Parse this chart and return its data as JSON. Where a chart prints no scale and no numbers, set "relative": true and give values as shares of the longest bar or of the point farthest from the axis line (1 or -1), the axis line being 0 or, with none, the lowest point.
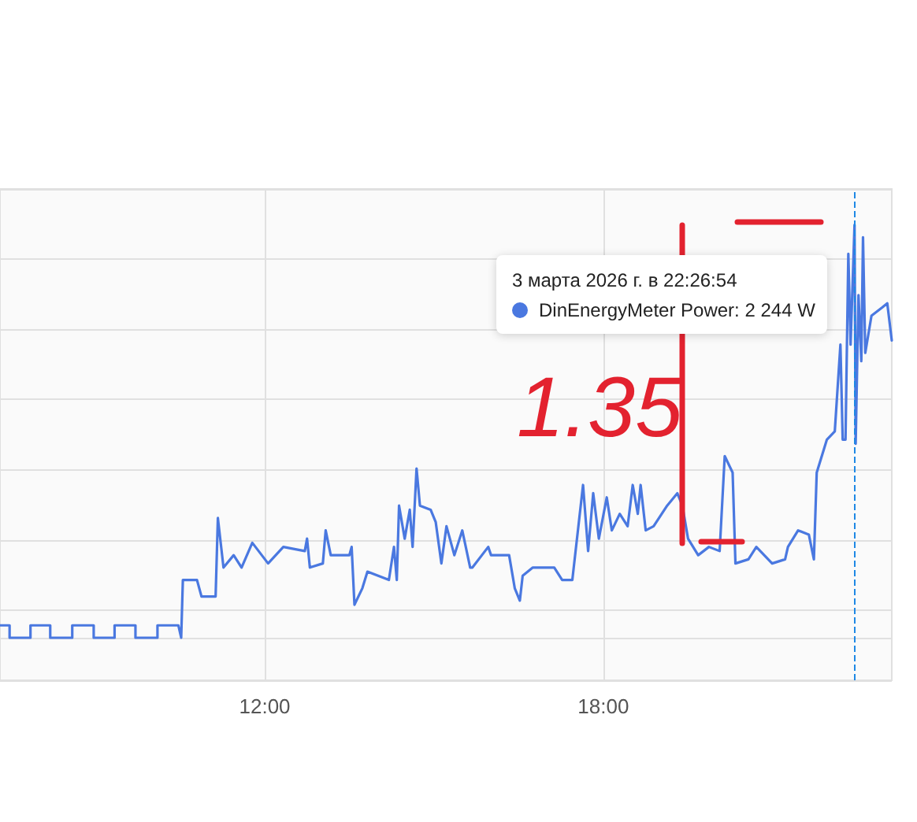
{
  "chart_data": {
    "type": "line",
    "relative": true,
    "color": "#4a78e0",
    "marker": "none",
    "grid": true,
    "tick_labels": "x",
    "xlim": [
      7.31,
      23.11
    ],
    "xticks": [
      {
        "value": 12,
        "label": "12:00"
      },
      {
        "value": 18,
        "label": "18:00"
      }
    ],
    "x": [
      7.31,
      7.48,
      7.48,
      7.85,
      7.85,
      8.2,
      8.2,
      8.59,
      8.59,
      8.97,
      8.97,
      9.34,
      9.34,
      9.71,
      9.71,
      10.1,
      10.1,
      10.47,
      10.52,
      10.55,
      10.8,
      10.88,
      11.13,
      11.17,
      11.27,
      11.45,
      11.59,
      11.78,
      12.06,
      12.33,
      12.71,
      12.75,
      12.8,
      13.03,
      13.08,
      13.17,
      13.5,
      13.54,
      13.59,
      13.73,
      13.82,
      14.2,
      14.29,
      14.34,
      14.38,
      14.48,
      14.57,
      14.62,
      14.69,
      14.75,
      14.94,
      15.03,
      15.13,
      15.22,
      15.36,
      15.5,
      15.64,
      15.68,
      15.96,
      16.01,
      16.33,
      16.43,
      16.52,
      16.57,
      16.75,
      17.13,
      17.27,
      17.45,
      17.64,
      17.73,
      17.82,
      17.92,
      18.06,
      18.15,
      18.29,
      18.43,
      18.52,
      18.61,
      18.66,
      18.75,
      18.89,
      19.13,
      19.31,
      19.4,
      19.5,
      19.68,
      19.87,
      20.06,
      20.15,
      20.29,
      20.34,
      20.57,
      20.71,
      20.99,
      21.22,
      21.27,
      21.45,
      21.64,
      21.73,
      21.78,
      21.96,
      22.1,
      22.2,
      22.24,
      22.29,
      22.34,
      22.38,
      22.45,
      22.47,
      22.52,
      22.57,
      22.6,
      22.64,
      22.75,
      22.94,
      23.03,
      23.11
    ],
    "values": [
      0.03,
      0.03,
      0,
      0,
      0.03,
      0.03,
      0,
      0,
      0.03,
      0.03,
      0,
      0,
      0.03,
      0.03,
      0,
      0,
      0.03,
      0.03,
      0,
      0.14,
      0.14,
      0.1,
      0.1,
      0.29,
      0.17,
      0.2,
      0.17,
      0.23,
      0.18,
      0.22,
      0.21,
      0.24,
      0.17,
      0.18,
      0.26,
      0.2,
      0.2,
      0.22,
      0.08,
      0.12,
      0.16,
      0.14,
      0.22,
      0.14,
      0.32,
      0.24,
      0.31,
      0.22,
      0.41,
      0.32,
      0.31,
      0.28,
      0.18,
      0.27,
      0.2,
      0.26,
      0.17,
      0.17,
      0.22,
      0.2,
      0.2,
      0.12,
      0.09,
      0.15,
      0.17,
      0.17,
      0.14,
      0.14,
      0.37,
      0.21,
      0.35,
      0.24,
      0.34,
      0.26,
      0.3,
      0.27,
      0.37,
      0.3,
      0.37,
      0.26,
      0.27,
      0.32,
      0.35,
      0.32,
      0.24,
      0.2,
      0.22,
      0.21,
      0.44,
      0.4,
      0.18,
      0.19,
      0.22,
      0.18,
      0.19,
      0.22,
      0.26,
      0.25,
      0.19,
      0.4,
      0.48,
      0.5,
      0.71,
      0.48,
      0.48,
      0.93,
      0.71,
      1,
      0.47,
      0.83,
      0.67,
      0.97,
      0.69,
      0.78,
      0.8,
      0.81,
      0.72
    ],
    "ref_lines": [
      {
        "axis": "x",
        "value": 22.45,
        "color": "#1e88e5",
        "line_style": "dashed"
      }
    ],
    "annotations": [
      "3 марта 2026 г. в 22:26:54",
      "DinEnergyMeter Power: 2 244 W",
      "1.35"
    ]
  }
}
